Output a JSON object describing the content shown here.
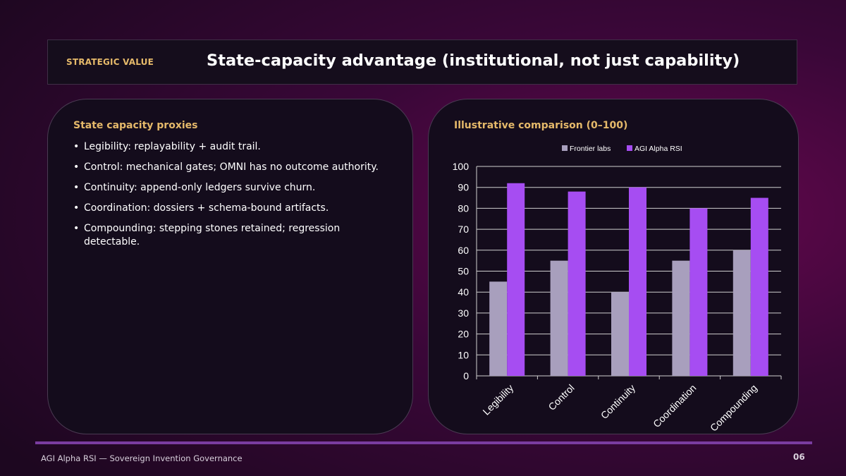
{
  "header": {
    "tag": "STRATEGIC VALUE",
    "title": "State-capacity advantage (institutional, not just capability)"
  },
  "left_card": {
    "title": "State capacity proxies",
    "bullets": [
      "Legibility: replayability + audit trail.",
      "Control: mechanical gates; OMNI has no outcome authority.",
      "Continuity: append-only ledgers survive churn.",
      "Coordination: dossiers + schema-bound artifacts.",
      "Compounding: stepping stones retained; regression detectable."
    ]
  },
  "right_card": {
    "title": "Illustrative comparison (0–100)"
  },
  "chart_data": {
    "type": "bar",
    "title": "",
    "xlabel": "",
    "ylabel": "",
    "categories": [
      "Legibility",
      "Control",
      "Continuity",
      "Coordination",
      "Compounding"
    ],
    "series": [
      {
        "name": "Frontier labs",
        "color": "#a89fbd",
        "values": [
          45,
          55,
          40,
          55,
          60
        ]
      },
      {
        "name": "AGI Alpha RSI",
        "color": "#a64df2",
        "values": [
          92,
          88,
          90,
          80,
          85
        ]
      }
    ],
    "ylim": [
      0,
      100
    ],
    "yticks": [
      0,
      10,
      20,
      30,
      40,
      50,
      60,
      70,
      80,
      90,
      100
    ],
    "grid": true,
    "legend_position": "top"
  },
  "footer": {
    "text": "AGI Alpha RSI — Sovereign Invention Governance",
    "page": "06"
  }
}
